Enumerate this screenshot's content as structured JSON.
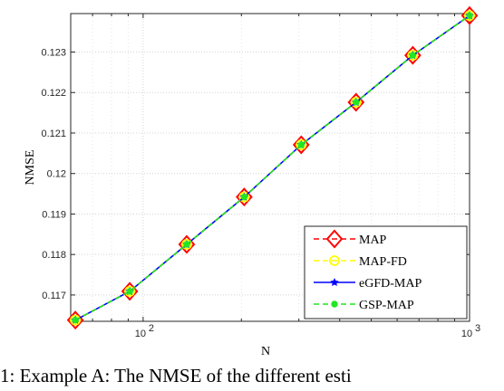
{
  "chart_data": {
    "type": "line",
    "xlabel": "N",
    "ylabel": "NMSE",
    "xscale": "log",
    "xlim": [
      60,
      1000
    ],
    "ylim": [
      0.11635,
      0.12395
    ],
    "grid": true,
    "legend_position": "bottom-right",
    "x": [
      62,
      91,
      136,
      204,
      305,
      449,
      670,
      1000
    ],
    "xticks": [
      {
        "value": 100,
        "base": "10",
        "exp": "2"
      },
      {
        "value": 1000,
        "base": "10",
        "exp": "3"
      }
    ],
    "yticks": [
      "0.117",
      "0.118",
      "0.119",
      "0.12",
      "0.121",
      "0.122",
      "0.123"
    ],
    "ytick_values": [
      0.117,
      0.118,
      0.119,
      0.12,
      0.121,
      0.122,
      0.123
    ],
    "series": [
      {
        "name": "MAP",
        "color": "#ff0000",
        "marker": "diamond",
        "dash": "dashed",
        "values": [
          0.11638,
          0.11709,
          0.11825,
          0.11942,
          0.12071,
          0.12176,
          0.12292,
          0.1239
        ]
      },
      {
        "name": "MAP-FD",
        "color": "#ffff00",
        "marker": "circle",
        "dash": "dashed",
        "values": [
          0.11638,
          0.11709,
          0.11825,
          0.11942,
          0.12071,
          0.12176,
          0.12292,
          0.1239
        ]
      },
      {
        "name": "eGFD-MAP",
        "color": "#0000ff",
        "marker": "star",
        "dash": "solid",
        "values": [
          0.11638,
          0.11709,
          0.11825,
          0.11942,
          0.12071,
          0.12176,
          0.12292,
          0.1239
        ]
      },
      {
        "name": "GSP-MAP",
        "color": "#22e622",
        "marker": "dot",
        "dash": "dashed",
        "values": [
          0.11638,
          0.11709,
          0.11825,
          0.11942,
          0.12071,
          0.12176,
          0.12292,
          0.1239
        ]
      }
    ]
  },
  "caption": {
    "text": "1: Example A: The NMSE of the different esti"
  }
}
